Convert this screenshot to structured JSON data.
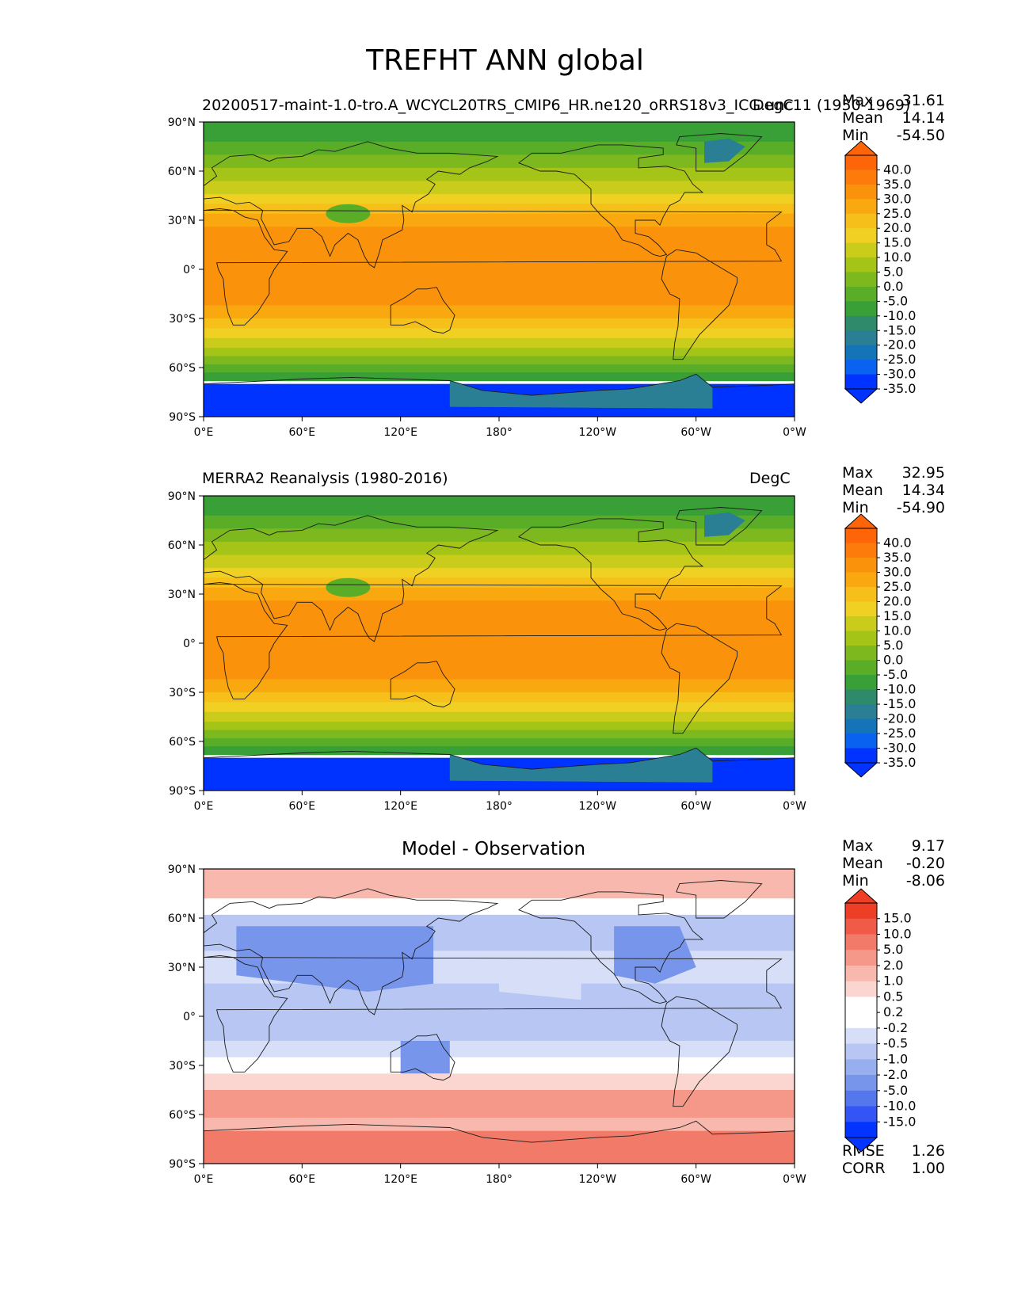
{
  "figure_title": "TREFHT ANN global",
  "colormaps": {
    "temperature": [
      "#0033ff",
      "#0a63f0",
      "#1573b8",
      "#2b7f94",
      "#2e8a6a",
      "#38a036",
      "#5aad27",
      "#7db91e",
      "#a4c417",
      "#c9cc1a",
      "#f0d023",
      "#f7bf1a",
      "#f9a810",
      "#fb920c",
      "#fc7b0a",
      "#fd6508"
    ],
    "difference": [
      "#0333ff",
      "#3355f5",
      "#5577ee",
      "#7895ec",
      "#98afef",
      "#b7c6f3",
      "#d7dff8",
      "#ffffff",
      "#ffffff",
      "#fbd6d0",
      "#f8b8ad",
      "#f59889",
      "#f27a68",
      "#ef5b47",
      "#ee3e25"
    ]
  },
  "chart_data": [
    {
      "type": "contour_map",
      "left_title": "20200517-maint-1.0-tro.A_WCYCL20TRS_CMIP6_HR.ne120_oRRS18v3_ICG.unc11 (1950-1969)",
      "right_title": "DegC",
      "center_title": "",
      "stats": [
        {
          "label": "Max",
          "value": "31.61"
        },
        {
          "label": "Mean",
          "value": "14.14"
        },
        {
          "label": "Min",
          "value": "-54.50"
        }
      ],
      "colorbar_ticks": [
        "40.0",
        "35.0",
        "30.0",
        "25.0",
        "20.0",
        "15.0",
        "10.0",
        "5.0",
        "0.0",
        "-5.0",
        "-10.0",
        "-15.0",
        "-20.0",
        "-25.0",
        "-30.0",
        "-35.0"
      ],
      "colormap": "temperature",
      "ylabels": [
        "90°N",
        "60°N",
        "30°N",
        "0°",
        "30°S",
        "60°S",
        "90°S"
      ],
      "xlabels": [
        "0°E",
        "60°E",
        "120°E",
        "180°",
        "120°W",
        "60°W",
        "0°W"
      ],
      "xlim": [
        0,
        360
      ],
      "ylim": [
        -90,
        90
      ]
    },
    {
      "type": "contour_map",
      "left_title": "MERRA2 Reanalysis (1980-2016)",
      "right_title": "DegC",
      "center_title": "",
      "stats": [
        {
          "label": "Max",
          "value": "32.95"
        },
        {
          "label": "Mean",
          "value": "14.34"
        },
        {
          "label": "Min",
          "value": "-54.90"
        }
      ],
      "colorbar_ticks": [
        "40.0",
        "35.0",
        "30.0",
        "25.0",
        "20.0",
        "15.0",
        "10.0",
        "5.0",
        "0.0",
        "-5.0",
        "-10.0",
        "-15.0",
        "-20.0",
        "-25.0",
        "-30.0",
        "-35.0"
      ],
      "colormap": "temperature",
      "ylabels": [
        "90°N",
        "60°N",
        "30°N",
        "0°",
        "30°S",
        "60°S",
        "90°S"
      ],
      "xlabels": [
        "0°E",
        "60°E",
        "120°E",
        "180°",
        "120°W",
        "60°W",
        "0°W"
      ],
      "xlim": [
        0,
        360
      ],
      "ylim": [
        -90,
        90
      ]
    },
    {
      "type": "contour_map",
      "left_title": "",
      "right_title": "",
      "center_title": "Model - Observation",
      "stats": [
        {
          "label": "Max",
          "value": "9.17"
        },
        {
          "label": "Mean",
          "value": "-0.20"
        },
        {
          "label": "Min",
          "value": "-8.06"
        }
      ],
      "extra_stats": [
        {
          "label": "RMSE",
          "value": "1.26"
        },
        {
          "label": "CORR",
          "value": "1.00"
        }
      ],
      "colorbar_ticks": [
        "15.0",
        "10.0",
        "5.0",
        "2.0",
        "1.0",
        "0.5",
        "0.2",
        "-0.2",
        "-0.5",
        "-1.0",
        "-2.0",
        "-5.0",
        "-10.0",
        "-15.0"
      ],
      "colormap": "difference",
      "ylabels": [
        "90°N",
        "60°N",
        "30°N",
        "0°",
        "30°S",
        "60°S",
        "90°S"
      ],
      "xlabels": [
        "0°E",
        "60°E",
        "120°E",
        "180°",
        "120°W",
        "60°W",
        "0°W"
      ],
      "xlim": [
        0,
        360
      ],
      "ylim": [
        -90,
        90
      ]
    }
  ]
}
